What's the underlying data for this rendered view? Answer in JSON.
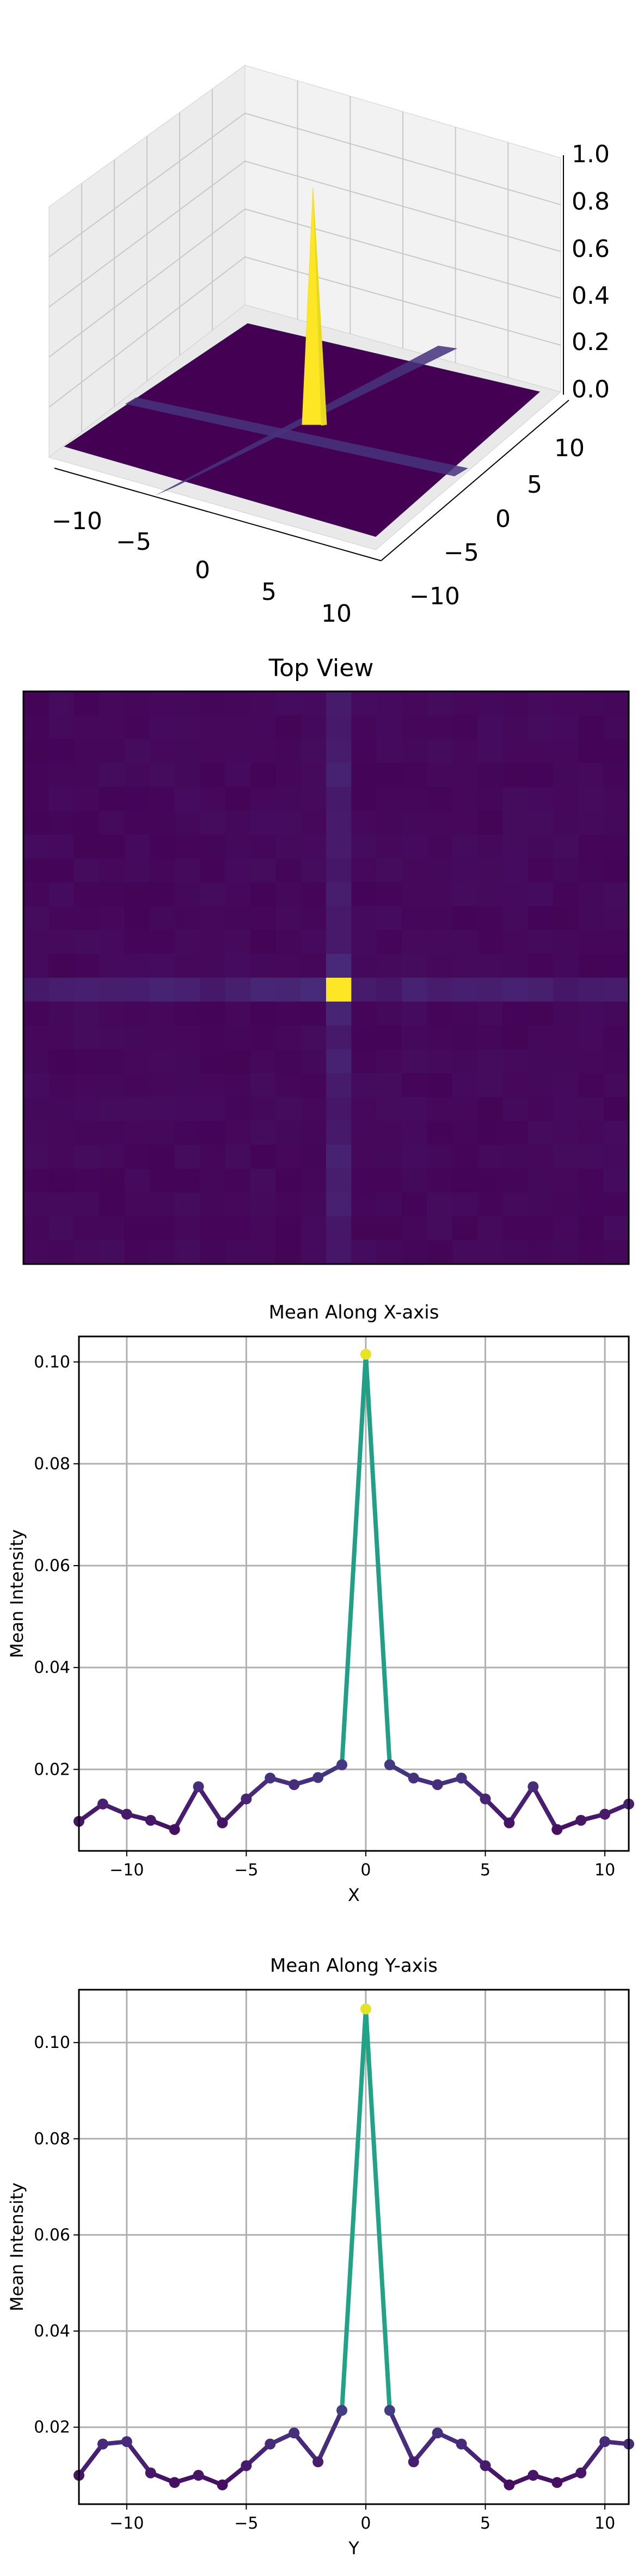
{
  "chart_data": [
    {
      "type": "surface3d",
      "title": "",
      "xticks": [
        "−10",
        "−5",
        "0",
        "5",
        "10"
      ],
      "yticks": [
        "−10",
        "−5",
        "0",
        "5",
        "10"
      ],
      "zticks": [
        "0.0",
        "0.2",
        "0.4",
        "0.6",
        "0.8",
        "1.0"
      ],
      "xlim": [
        -12,
        11
      ],
      "ylim": [
        -12,
        11
      ],
      "zlim": [
        0,
        1
      ],
      "peak": {
        "x": 0,
        "y": 0,
        "z": 1.0
      },
      "colormap": "viridis"
    },
    {
      "type": "heatmap",
      "title": "Top View",
      "grid_size": 24,
      "peak": {
        "x": 0,
        "y": 0,
        "value": 1.0
      },
      "colormap": "viridis"
    },
    {
      "type": "line",
      "title": "Mean Along X-axis",
      "xlabel": "X",
      "ylabel": "Mean Intensity",
      "xlim": [
        -12,
        11
      ],
      "ylim": [
        0.004,
        0.105
      ],
      "xticks": [
        "−10",
        "−5",
        "0",
        "5",
        "10"
      ],
      "yticks": [
        "0.02",
        "0.04",
        "0.06",
        "0.08",
        "0.10"
      ],
      "x": [
        -12,
        -11,
        -10,
        -9,
        -8,
        -7,
        -6,
        -5,
        -4,
        -3,
        -2,
        -1,
        0,
        1,
        2,
        3,
        4,
        5,
        6,
        7,
        8,
        9,
        10,
        11
      ],
      "values": [
        0.0098,
        0.0132,
        0.0112,
        0.01,
        0.0082,
        0.0166,
        0.0095,
        0.0142,
        0.0183,
        0.017,
        0.0184,
        0.0209,
        0.1015,
        0.0209,
        0.0183,
        0.017,
        0.0183,
        0.0142,
        0.0095,
        0.0166,
        0.0082,
        0.01,
        0.0112,
        0.0132
      ]
    },
    {
      "type": "line",
      "title": "Mean Along Y-axis",
      "xlabel": "Y",
      "ylabel": "Mean Intensity",
      "xlim": [
        -12,
        11
      ],
      "ylim": [
        0.004,
        0.111
      ],
      "xticks": [
        "−10",
        "−5",
        "0",
        "5",
        "10"
      ],
      "yticks": [
        "0.02",
        "0.04",
        "0.06",
        "0.08",
        "0.10"
      ],
      "x": [
        -12,
        -11,
        -10,
        -9,
        -8,
        -7,
        -6,
        -5,
        -4,
        -3,
        -2,
        -1,
        0,
        1,
        2,
        3,
        4,
        5,
        6,
        7,
        8,
        9,
        10,
        11
      ],
      "values": [
        0.01,
        0.0165,
        0.017,
        0.0105,
        0.0085,
        0.01,
        0.008,
        0.012,
        0.0165,
        0.0188,
        0.0128,
        0.0235,
        0.107,
        0.0235,
        0.0128,
        0.0188,
        0.0165,
        0.012,
        0.008,
        0.01,
        0.0085,
        0.0105,
        0.017,
        0.0165
      ]
    }
  ],
  "colors": {
    "viridis_low": "#440154",
    "viridis_mid": "#21918c",
    "viridis_high": "#fde725",
    "grid": "#b0b0b0",
    "pane": "#f2f2f2"
  }
}
